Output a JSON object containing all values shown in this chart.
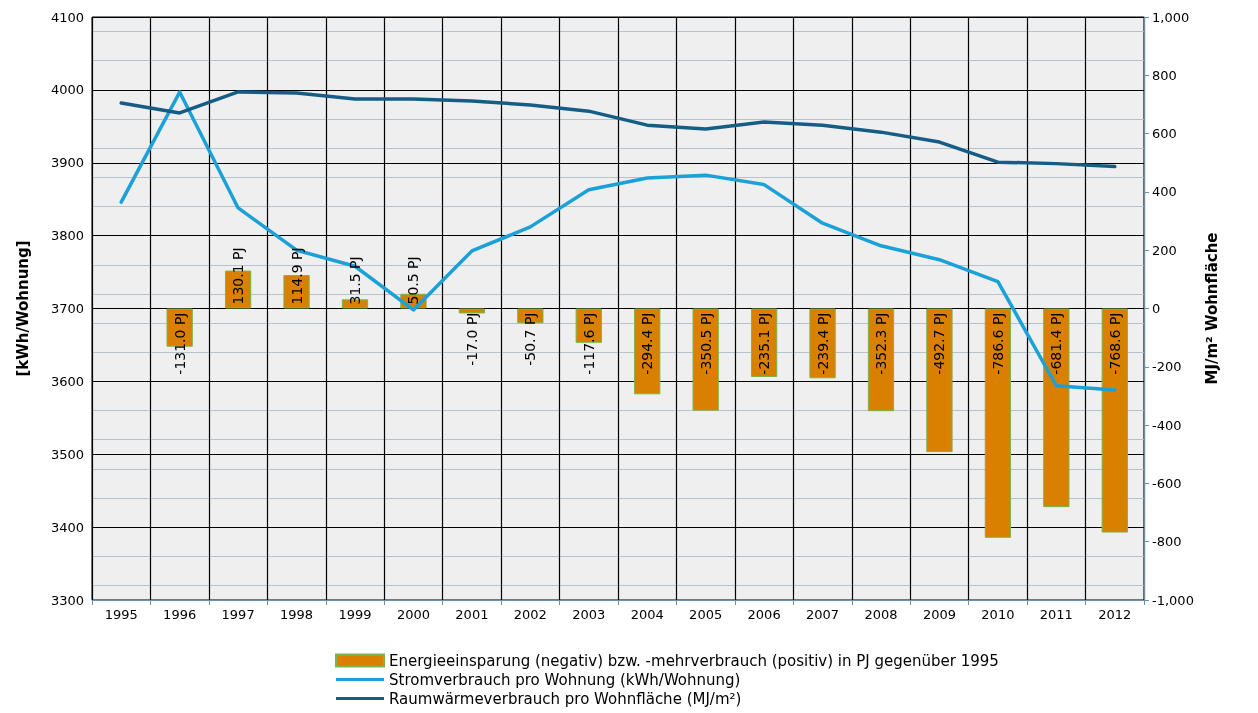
{
  "chart_data": {
    "type": "bar",
    "ylabel": "[kWh/Wohnung]",
    "y2label": "MJ/m² Wohnfläche",
    "categories": [
      "1995",
      "1996",
      "1997",
      "1998",
      "1999",
      "2000",
      "2001",
      "2002",
      "2003",
      "2004",
      "2005",
      "2006",
      "2007",
      "2008",
      "2009",
      "2010",
      "2011",
      "2012"
    ],
    "series": [
      {
        "name": "Energieeinsparung (negativ) bzw. -mehrverbrauch (positiv) in PJ gegenüber 1995",
        "axis": "y2",
        "color": "#d98000",
        "values": [
          null,
          -131.0,
          130.1,
          114.9,
          31.5,
          50.5,
          -17.0,
          -50.7,
          -117.6,
          -294.4,
          -350.5,
          -235.1,
          -239.4,
          -352.3,
          -492.7,
          -786.6,
          -681.4,
          -768.6
        ],
        "value_labels": [
          null,
          "-131.0 PJ",
          "130.1 PJ",
          "114.9 PJ",
          "31.5 PJ",
          "50.5 PJ",
          "-17.0 PJ",
          "-50.7 PJ",
          "-117.6 PJ",
          "-294.4 PJ",
          "-350.5 PJ",
          "-235.1 PJ",
          "-239.4 PJ",
          "-352.3 PJ",
          "-492.7 PJ",
          "-786.6 PJ",
          "-681.4 PJ",
          "-768.6 PJ"
        ]
      },
      {
        "name": "Stromverbrauch pro Wohnung (kWh/Wohnung)",
        "type": "line",
        "color": "#1ba1d8",
        "values": [
          3846,
          3997,
          3838,
          3780,
          3758,
          3698,
          3779,
          3812,
          3863,
          3879,
          3883,
          3870,
          3817,
          3786,
          3767,
          3737,
          3594,
          3588
        ]
      },
      {
        "name": "Raumwärmeverbrauch pro Wohnfläche (MJ/m²)",
        "type": "line",
        "axis": "y2",
        "color": "#165d86",
        "values": [
          705,
          671,
          743,
          739,
          719,
          719,
          712,
          698,
          677,
          629,
          616,
          640,
          629,
          605,
          571,
          502,
          497,
          487
        ]
      }
    ],
    "ylim": [
      3300,
      4100
    ],
    "yticks": [
      3300,
      3400,
      3500,
      3600,
      3700,
      3800,
      3900,
      4000,
      4100
    ],
    "y2lim": [
      -1000,
      1000
    ],
    "y2ticks": [
      {
        "value": -1000,
        "label": "-1,000"
      },
      -800,
      -600,
      -400,
      -200,
      0,
      200,
      400,
      600,
      800,
      {
        "value": 1000,
        "label": "1,000"
      }
    ],
    "grid": true,
    "legend": "bottom",
    "marker": "none",
    "line_style": "solid"
  }
}
